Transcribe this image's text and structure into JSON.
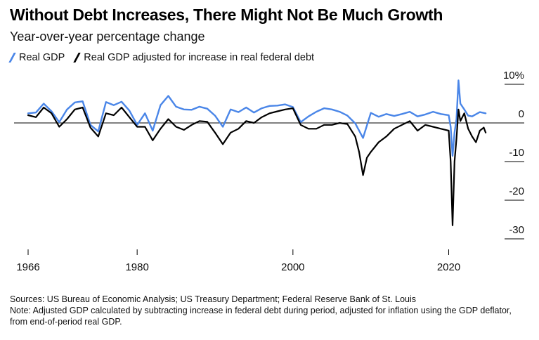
{
  "header": {
    "title": "Without Debt Increases, There Might Not Be Much Growth",
    "subtitle": "Year-over-year percentage change"
  },
  "footer": {
    "sources": "Sources: US Bureau of Economic Analysis; US Treasury Department; Federal Reserve Bank of St. Louis",
    "note": "Note: Adjusted GDP calculated by subtracting increase in federal debt during period, adjusted for inflation using the GDP deflator, from end-of-period real GDP."
  },
  "colors": {
    "real_gdp": "#4a86e8",
    "adjusted": "#000000",
    "axis": "#000000",
    "grid": "#dcdcdc"
  },
  "chart_data": {
    "type": "line",
    "title": "Without Debt Increases, There Might Not Be Much Growth",
    "subtitle": "Year-over-year percentage change",
    "xlabel": "",
    "ylabel": "",
    "xlim": [
      1966,
      2026
    ],
    "ylim": [
      -30,
      10
    ],
    "x_ticks": [
      1966,
      1980,
      2000,
      2020
    ],
    "y_ticks": [
      {
        "value": 10,
        "label": "10%"
      },
      {
        "value": 0,
        "label": "0"
      },
      {
        "value": -10,
        "label": "-10"
      },
      {
        "value": -20,
        "label": "-20"
      },
      {
        "value": -30,
        "label": "-30"
      }
    ],
    "legend_position": "top-left",
    "grid": false,
    "series": [
      {
        "name": "Real GDP",
        "color": "#4a86e8",
        "points": [
          [
            1966.0,
            2.5
          ],
          [
            1967.0,
            2.7
          ],
          [
            1968.0,
            5.0
          ],
          [
            1969.0,
            3.0
          ],
          [
            1970.0,
            0.2
          ],
          [
            1971.0,
            3.5
          ],
          [
            1972.0,
            5.3
          ],
          [
            1973.0,
            5.6
          ],
          [
            1974.0,
            -0.5
          ],
          [
            1975.0,
            -2.2
          ],
          [
            1976.0,
            5.4
          ],
          [
            1977.0,
            4.6
          ],
          [
            1978.0,
            5.5
          ],
          [
            1979.0,
            3.2
          ],
          [
            1980.0,
            -0.5
          ],
          [
            1981.0,
            2.5
          ],
          [
            1982.0,
            -2.0
          ],
          [
            1983.0,
            4.6
          ],
          [
            1984.0,
            7.0
          ],
          [
            1985.0,
            4.2
          ],
          [
            1986.0,
            3.5
          ],
          [
            1987.0,
            3.4
          ],
          [
            1988.0,
            4.2
          ],
          [
            1989.0,
            3.7
          ],
          [
            1990.0,
            1.9
          ],
          [
            1991.0,
            -1.0
          ],
          [
            1992.0,
            3.5
          ],
          [
            1993.0,
            2.8
          ],
          [
            1994.0,
            4.0
          ],
          [
            1995.0,
            2.7
          ],
          [
            1996.0,
            3.8
          ],
          [
            1997.0,
            4.4
          ],
          [
            1998.0,
            4.5
          ],
          [
            1999.0,
            4.8
          ],
          [
            2000.0,
            4.1
          ],
          [
            2001.0,
            0.2
          ],
          [
            2002.0,
            1.7
          ],
          [
            2003.0,
            2.9
          ],
          [
            2004.0,
            3.8
          ],
          [
            2005.0,
            3.5
          ],
          [
            2006.0,
            2.9
          ],
          [
            2007.0,
            1.9
          ],
          [
            2008.0,
            -0.1
          ],
          [
            2009.0,
            -3.9
          ],
          [
            2010.0,
            2.6
          ],
          [
            2011.0,
            1.6
          ],
          [
            2012.0,
            2.3
          ],
          [
            2013.0,
            1.8
          ],
          [
            2014.0,
            2.3
          ],
          [
            2015.0,
            2.9
          ],
          [
            2016.0,
            1.7
          ],
          [
            2017.0,
            2.2
          ],
          [
            2018.0,
            2.9
          ],
          [
            2019.0,
            2.3
          ],
          [
            2020.0,
            2.0
          ],
          [
            2020.25,
            -1.0
          ],
          [
            2020.5,
            -8.5
          ],
          [
            2020.75,
            -2.5
          ],
          [
            2021.0,
            1.0
          ],
          [
            2021.25,
            11.0
          ],
          [
            2021.5,
            5.0
          ],
          [
            2022.0,
            3.5
          ],
          [
            2022.5,
            1.9
          ],
          [
            2023.0,
            1.7
          ],
          [
            2024.0,
            2.8
          ],
          [
            2024.75,
            2.5
          ]
        ]
      },
      {
        "name": "Real GDP adjusted for increase in real federal debt",
        "color": "#000000",
        "points": [
          [
            1966.0,
            2.0
          ],
          [
            1967.0,
            1.5
          ],
          [
            1968.0,
            4.0
          ],
          [
            1969.0,
            2.5
          ],
          [
            1970.0,
            -1.0
          ],
          [
            1971.0,
            1.0
          ],
          [
            1972.0,
            3.5
          ],
          [
            1973.0,
            4.0
          ],
          [
            1974.0,
            -1.2
          ],
          [
            1975.0,
            -3.5
          ],
          [
            1976.0,
            2.5
          ],
          [
            1977.0,
            2.0
          ],
          [
            1978.0,
            4.0
          ],
          [
            1979.0,
            1.5
          ],
          [
            1980.0,
            -1.0
          ],
          [
            1981.0,
            -1.0
          ],
          [
            1982.0,
            -4.5
          ],
          [
            1983.0,
            -1.5
          ],
          [
            1984.0,
            1.0
          ],
          [
            1985.0,
            -1.0
          ],
          [
            1986.0,
            -1.8
          ],
          [
            1987.0,
            -0.5
          ],
          [
            1988.0,
            0.5
          ],
          [
            1989.0,
            0.3
          ],
          [
            1990.0,
            -2.5
          ],
          [
            1991.0,
            -5.5
          ],
          [
            1992.0,
            -2.5
          ],
          [
            1993.0,
            -1.5
          ],
          [
            1994.0,
            0.5
          ],
          [
            1995.0,
            0.0
          ],
          [
            1996.0,
            1.5
          ],
          [
            1997.0,
            2.5
          ],
          [
            1998.0,
            3.0
          ],
          [
            1999.0,
            3.5
          ],
          [
            2000.0,
            3.8
          ],
          [
            2001.0,
            -0.5
          ],
          [
            2002.0,
            -1.5
          ],
          [
            2003.0,
            -1.5
          ],
          [
            2004.0,
            -0.5
          ],
          [
            2005.0,
            -0.5
          ],
          [
            2006.0,
            0.0
          ],
          [
            2007.0,
            -0.3
          ],
          [
            2008.0,
            -3.5
          ],
          [
            2008.5,
            -7.5
          ],
          [
            2009.0,
            -13.5
          ],
          [
            2009.5,
            -9.0
          ],
          [
            2010.0,
            -7.5
          ],
          [
            2011.0,
            -5.0
          ],
          [
            2012.0,
            -3.5
          ],
          [
            2013.0,
            -1.5
          ],
          [
            2014.0,
            -0.5
          ],
          [
            2015.0,
            0.5
          ],
          [
            2016.0,
            -2.0
          ],
          [
            2017.0,
            -0.5
          ],
          [
            2018.0,
            -1.0
          ],
          [
            2019.0,
            -1.5
          ],
          [
            2020.0,
            -2.0
          ],
          [
            2020.25,
            -10.0
          ],
          [
            2020.5,
            -26.5
          ],
          [
            2020.75,
            -10.0
          ],
          [
            2021.0,
            -4.0
          ],
          [
            2021.25,
            3.5
          ],
          [
            2021.5,
            0.5
          ],
          [
            2022.0,
            2.5
          ],
          [
            2022.5,
            -1.5
          ],
          [
            2023.0,
            -3.5
          ],
          [
            2023.5,
            -5.0
          ],
          [
            2024.0,
            -2.0
          ],
          [
            2024.5,
            -1.2
          ],
          [
            2024.75,
            -2.5
          ]
        ]
      }
    ]
  }
}
